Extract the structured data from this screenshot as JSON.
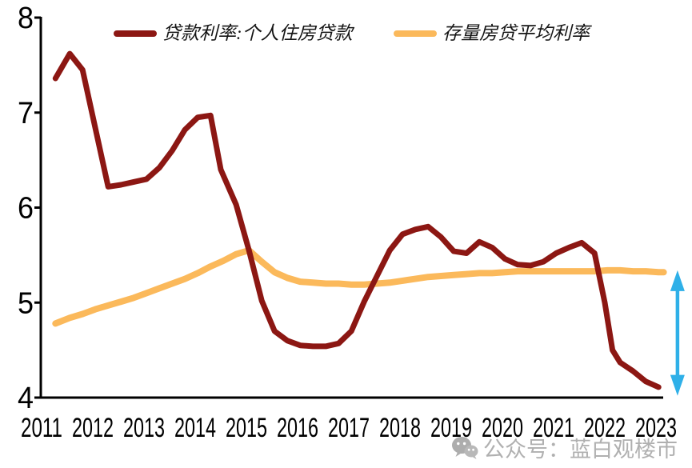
{
  "chart_data": {
    "type": "line",
    "title": "",
    "unit": "%",
    "grid": false,
    "legend_position": "top",
    "y_axis": {
      "min": 4,
      "max": 8,
      "ticks": [
        "8",
        "7",
        "6",
        "5",
        "4"
      ]
    },
    "x_axis": {
      "ticks": [
        "2011",
        "2012",
        "2013",
        "2014",
        "2015",
        "2016",
        "2017",
        "2018",
        "2019",
        "2020",
        "2021",
        "2022",
        "2023"
      ]
    },
    "series": [
      {
        "name": "贷款利率:个人住房贷款",
        "color": "#8C1713",
        "points": [
          [
            2011.27,
            7.36
          ],
          [
            2011.55,
            7.62
          ],
          [
            2011.8,
            7.45
          ],
          [
            2012.3,
            6.22
          ],
          [
            2012.55,
            6.24
          ],
          [
            2012.8,
            6.27
          ],
          [
            2013.05,
            6.3
          ],
          [
            2013.3,
            6.42
          ],
          [
            2013.55,
            6.6
          ],
          [
            2013.8,
            6.82
          ],
          [
            2014.05,
            6.95
          ],
          [
            2014.3,
            6.97
          ],
          [
            2014.5,
            6.4
          ],
          [
            2014.8,
            6.03
          ],
          [
            2015.05,
            5.55
          ],
          [
            2015.3,
            5.02
          ],
          [
            2015.55,
            4.7
          ],
          [
            2015.8,
            4.6
          ],
          [
            2016.05,
            4.55
          ],
          [
            2016.3,
            4.54
          ],
          [
            2016.55,
            4.54
          ],
          [
            2016.8,
            4.57
          ],
          [
            2017.05,
            4.7
          ],
          [
            2017.3,
            5.01
          ],
          [
            2017.55,
            5.28
          ],
          [
            2017.8,
            5.55
          ],
          [
            2018.05,
            5.72
          ],
          [
            2018.3,
            5.77
          ],
          [
            2018.55,
            5.8
          ],
          [
            2018.8,
            5.69
          ],
          [
            2019.05,
            5.54
          ],
          [
            2019.3,
            5.52
          ],
          [
            2019.55,
            5.64
          ],
          [
            2019.8,
            5.58
          ],
          [
            2020.05,
            5.46
          ],
          [
            2020.3,
            5.4
          ],
          [
            2020.55,
            5.39
          ],
          [
            2020.8,
            5.43
          ],
          [
            2021.05,
            5.52
          ],
          [
            2021.3,
            5.58
          ],
          [
            2021.55,
            5.63
          ],
          [
            2021.8,
            5.52
          ],
          [
            2022.0,
            5.0
          ],
          [
            2022.15,
            4.5
          ],
          [
            2022.3,
            4.37
          ],
          [
            2022.55,
            4.28
          ],
          [
            2022.8,
            4.17
          ],
          [
            2023.05,
            4.11
          ]
        ]
      },
      {
        "name": "存量房贷平均利率",
        "color": "#FBB95B",
        "points": [
          [
            2011.27,
            4.78
          ],
          [
            2011.55,
            4.84
          ],
          [
            2011.8,
            4.88
          ],
          [
            2012.05,
            4.93
          ],
          [
            2012.3,
            4.97
          ],
          [
            2012.55,
            5.01
          ],
          [
            2012.8,
            5.05
          ],
          [
            2013.05,
            5.1
          ],
          [
            2013.3,
            5.15
          ],
          [
            2013.55,
            5.2
          ],
          [
            2013.8,
            5.25
          ],
          [
            2014.05,
            5.31
          ],
          [
            2014.3,
            5.38
          ],
          [
            2014.55,
            5.44
          ],
          [
            2014.8,
            5.51
          ],
          [
            2015.05,
            5.55
          ],
          [
            2015.3,
            5.43
          ],
          [
            2015.55,
            5.32
          ],
          [
            2015.8,
            5.26
          ],
          [
            2016.05,
            5.22
          ],
          [
            2016.3,
            5.21
          ],
          [
            2016.55,
            5.2
          ],
          [
            2016.8,
            5.2
          ],
          [
            2017.05,
            5.19
          ],
          [
            2017.3,
            5.19
          ],
          [
            2017.55,
            5.2
          ],
          [
            2017.8,
            5.21
          ],
          [
            2018.05,
            5.23
          ],
          [
            2018.3,
            5.25
          ],
          [
            2018.55,
            5.27
          ],
          [
            2018.8,
            5.28
          ],
          [
            2019.05,
            5.29
          ],
          [
            2019.3,
            5.3
          ],
          [
            2019.55,
            5.31
          ],
          [
            2019.8,
            5.31
          ],
          [
            2020.05,
            5.32
          ],
          [
            2020.3,
            5.33
          ],
          [
            2020.55,
            5.33
          ],
          [
            2020.8,
            5.33
          ],
          [
            2021.05,
            5.33
          ],
          [
            2021.3,
            5.33
          ],
          [
            2021.55,
            5.33
          ],
          [
            2021.8,
            5.33
          ],
          [
            2022.05,
            5.34
          ],
          [
            2022.3,
            5.34
          ],
          [
            2022.55,
            5.33
          ],
          [
            2022.8,
            5.33
          ],
          [
            2023.05,
            5.32
          ],
          [
            2023.15,
            5.32
          ]
        ]
      }
    ],
    "annotation_arrow": {
      "description": "vertical double-headed arrow marking gap between existing-mortgage average rate and new loan rate",
      "x_year": 2023.42,
      "top_value": 5.34,
      "bottom_value": 4.02,
      "color": "#2FB0E8"
    }
  },
  "legend": {
    "items": [
      {
        "label": "贷款利率:个人住房贷款",
        "color": "#8C1713"
      },
      {
        "label": "存量房贷平均利率",
        "color": "#FBB95B"
      }
    ]
  },
  "watermark": {
    "icon": "wechat-icon",
    "text": "公众号：蓝白观楼市"
  },
  "colors": {
    "axis": "#000000",
    "loan_rate_line": "#8C1713",
    "existing_mortgage_line": "#FBB95B",
    "arrow": "#2FB0E8",
    "watermark_gray": "#b0b0b0",
    "background": "#ffffff"
  }
}
